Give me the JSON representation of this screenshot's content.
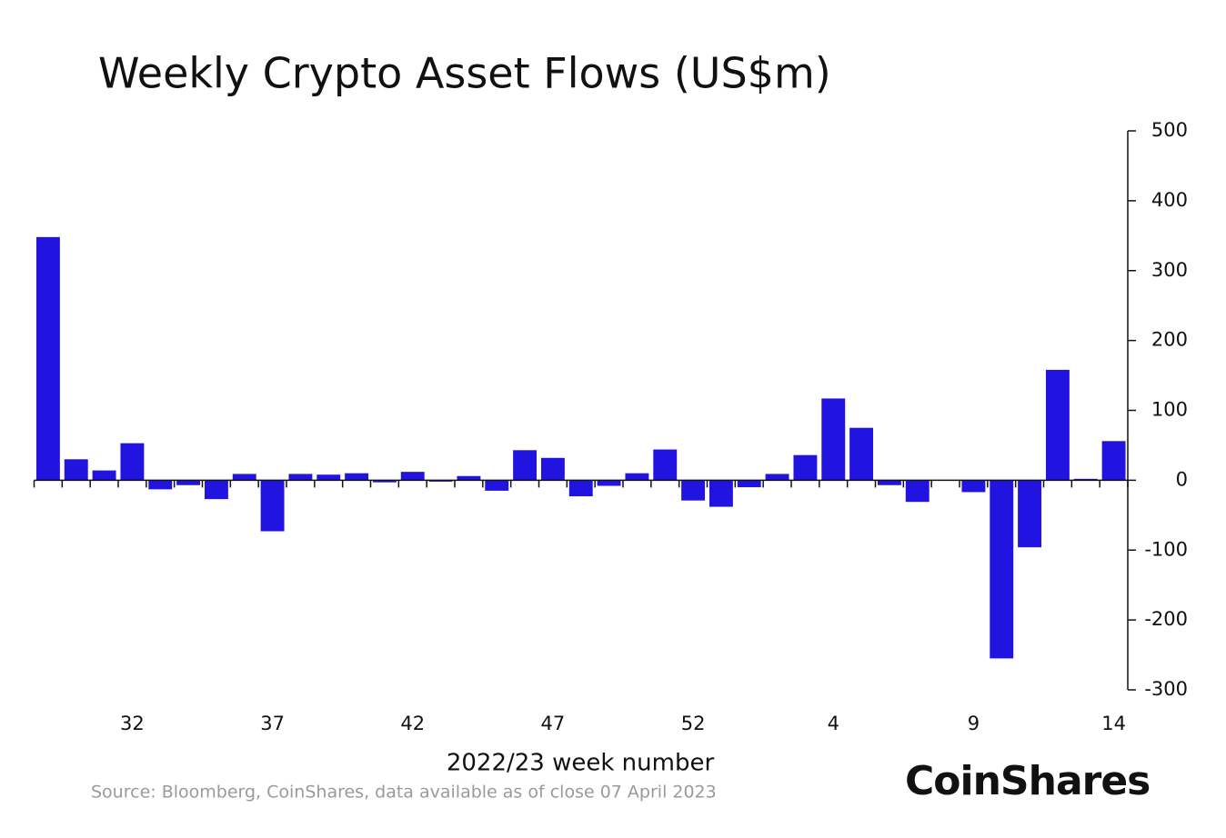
{
  "chart_data": {
    "type": "bar",
    "title": "Weekly Crypto Asset Flows (US$m)",
    "x_label": "2022/23 week number",
    "source": "Source: Bloomberg, CoinShares, data available as of close 07 April 2023",
    "logo": "CoinShares",
    "categories": [
      null,
      null,
      null,
      "32",
      null,
      null,
      null,
      null,
      "37",
      null,
      null,
      null,
      null,
      "42",
      null,
      null,
      null,
      null,
      "47",
      null,
      null,
      null,
      null,
      "52",
      null,
      null,
      null,
      null,
      "4",
      null,
      null,
      null,
      null,
      "9",
      null,
      null,
      null,
      null,
      "14"
    ],
    "values": [
      348,
      30,
      14,
      53,
      -13,
      -7,
      -27,
      9,
      -73,
      9,
      8,
      10,
      -3,
      12,
      -2,
      6,
      -15,
      43,
      32,
      -23,
      -8,
      10,
      44,
      -29,
      -38,
      -10,
      9,
      36,
      117,
      75,
      -7,
      -31,
      0,
      -17,
      -255,
      -96,
      158,
      2,
      56
    ],
    "color": "#2113e0",
    "ylim": [
      -300,
      500
    ],
    "yticks": [
      -300,
      -200,
      -100,
      0,
      100,
      200,
      300,
      400,
      500
    ],
    "y_axis_side": "right",
    "grid": false
  }
}
